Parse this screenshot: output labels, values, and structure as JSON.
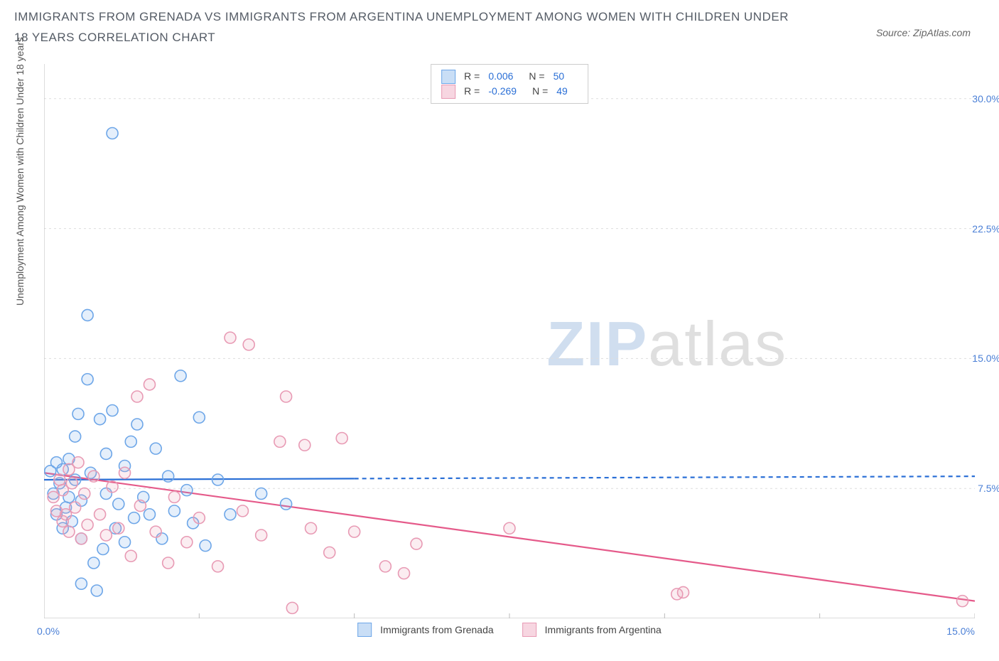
{
  "title": "IMMIGRANTS FROM GRENADA VS IMMIGRANTS FROM ARGENTINA UNEMPLOYMENT AMONG WOMEN WITH CHILDREN UNDER 18 YEARS CORRELATION CHART",
  "source_label": "Source: ZipAtlas.com",
  "ylabel": "Unemployment Among Women with Children Under 18 years",
  "watermark": {
    "zip": "ZIP",
    "atlas": "atlas"
  },
  "chart": {
    "type": "scatter",
    "background_color": "#ffffff",
    "grid_color": "#dddddd",
    "axis_line_color": "#bbbbbb",
    "xlim": [
      0,
      15
    ],
    "ylim": [
      0,
      32
    ],
    "x_tick_positions": [
      0,
      2.5,
      5.0,
      7.5,
      10.0,
      12.5,
      15.0
    ],
    "y_grid_values": [
      7.5,
      15.0,
      22.5,
      30.0
    ],
    "x_tick_labels_visible": {
      "left": "0.0%",
      "right": "15.0%"
    },
    "y_tick_labels_right": [
      "7.5%",
      "15.0%",
      "22.5%",
      "30.0%"
    ],
    "marker_radius": 8,
    "marker_stroke_width": 1.6,
    "marker_fill_opacity": 0.18,
    "trend_line_width": 2.2,
    "trend_dash_pattern": "6,5",
    "series": [
      {
        "name": "Immigrants from Grenada",
        "color": "#6da6e8",
        "line_color": "#2a6fd6",
        "swatch_fill": "#c9def6",
        "swatch_border": "#6da6e8",
        "stats": {
          "R": "0.006",
          "N": "50"
        },
        "trend": {
          "x1": 0,
          "y1": 8.0,
          "x2": 15,
          "y2": 8.2,
          "solid_until_x": 5.0
        },
        "points": [
          [
            0.1,
            8.5
          ],
          [
            0.15,
            7.2
          ],
          [
            0.2,
            6.0
          ],
          [
            0.2,
            9.0
          ],
          [
            0.25,
            7.8
          ],
          [
            0.3,
            8.6
          ],
          [
            0.3,
            5.2
          ],
          [
            0.35,
            6.4
          ],
          [
            0.4,
            7.0
          ],
          [
            0.4,
            9.2
          ],
          [
            0.45,
            5.6
          ],
          [
            0.5,
            8.0
          ],
          [
            0.5,
            10.5
          ],
          [
            0.55,
            11.8
          ],
          [
            0.6,
            6.8
          ],
          [
            0.6,
            4.6
          ],
          [
            0.7,
            13.8
          ],
          [
            0.7,
            17.5
          ],
          [
            0.75,
            8.4
          ],
          [
            0.8,
            3.2
          ],
          [
            0.9,
            11.5
          ],
          [
            0.95,
            4.0
          ],
          [
            1.0,
            9.5
          ],
          [
            1.0,
            7.2
          ],
          [
            1.1,
            12.0
          ],
          [
            1.1,
            28.0
          ],
          [
            1.15,
            5.2
          ],
          [
            1.2,
            6.6
          ],
          [
            1.3,
            8.8
          ],
          [
            1.3,
            4.4
          ],
          [
            1.4,
            10.2
          ],
          [
            1.45,
            5.8
          ],
          [
            1.5,
            11.2
          ],
          [
            1.6,
            7.0
          ],
          [
            1.7,
            6.0
          ],
          [
            1.8,
            9.8
          ],
          [
            1.9,
            4.6
          ],
          [
            2.0,
            8.2
          ],
          [
            2.1,
            6.2
          ],
          [
            2.2,
            14.0
          ],
          [
            2.3,
            7.4
          ],
          [
            2.4,
            5.5
          ],
          [
            2.5,
            11.6
          ],
          [
            2.6,
            4.2
          ],
          [
            2.8,
            8.0
          ],
          [
            3.0,
            6.0
          ],
          [
            3.5,
            7.2
          ],
          [
            3.9,
            6.6
          ],
          [
            0.6,
            2.0
          ],
          [
            0.85,
            1.6
          ]
        ]
      },
      {
        "name": "Immigrants from Argentina",
        "color": "#e89ab4",
        "line_color": "#e55a8a",
        "swatch_fill": "#f7d6e1",
        "swatch_border": "#e89ab4",
        "stats": {
          "R": "-0.269",
          "N": "49"
        },
        "trend": {
          "x1": 0,
          "y1": 8.4,
          "x2": 15,
          "y2": 1.0,
          "solid_until_x": 15.0
        },
        "points": [
          [
            0.15,
            7.0
          ],
          [
            0.2,
            6.2
          ],
          [
            0.25,
            8.0
          ],
          [
            0.3,
            5.6
          ],
          [
            0.3,
            7.4
          ],
          [
            0.35,
            6.0
          ],
          [
            0.4,
            8.6
          ],
          [
            0.4,
            5.0
          ],
          [
            0.45,
            7.8
          ],
          [
            0.5,
            6.4
          ],
          [
            0.55,
            9.0
          ],
          [
            0.6,
            4.6
          ],
          [
            0.65,
            7.2
          ],
          [
            0.7,
            5.4
          ],
          [
            0.8,
            8.2
          ],
          [
            0.9,
            6.0
          ],
          [
            1.0,
            4.8
          ],
          [
            1.1,
            7.6
          ],
          [
            1.2,
            5.2
          ],
          [
            1.3,
            8.4
          ],
          [
            1.4,
            3.6
          ],
          [
            1.5,
            12.8
          ],
          [
            1.55,
            6.5
          ],
          [
            1.7,
            13.5
          ],
          [
            1.8,
            5.0
          ],
          [
            2.0,
            3.2
          ],
          [
            2.1,
            7.0
          ],
          [
            2.3,
            4.4
          ],
          [
            2.5,
            5.8
          ],
          [
            2.8,
            3.0
          ],
          [
            3.0,
            16.2
          ],
          [
            3.2,
            6.2
          ],
          [
            3.3,
            15.8
          ],
          [
            3.5,
            4.8
          ],
          [
            3.8,
            10.2
          ],
          [
            3.9,
            12.8
          ],
          [
            4.0,
            0.6
          ],
          [
            4.2,
            10.0
          ],
          [
            4.3,
            5.2
          ],
          [
            4.6,
            3.8
          ],
          [
            4.8,
            10.4
          ],
          [
            5.0,
            5.0
          ],
          [
            5.5,
            3.0
          ],
          [
            5.8,
            2.6
          ],
          [
            6.0,
            4.3
          ],
          [
            7.5,
            5.2
          ],
          [
            10.2,
            1.4
          ],
          [
            10.3,
            1.5
          ],
          [
            14.8,
            1.0
          ]
        ]
      }
    ],
    "legend_top_labels": {
      "R": "R =",
      "N": "N ="
    }
  }
}
